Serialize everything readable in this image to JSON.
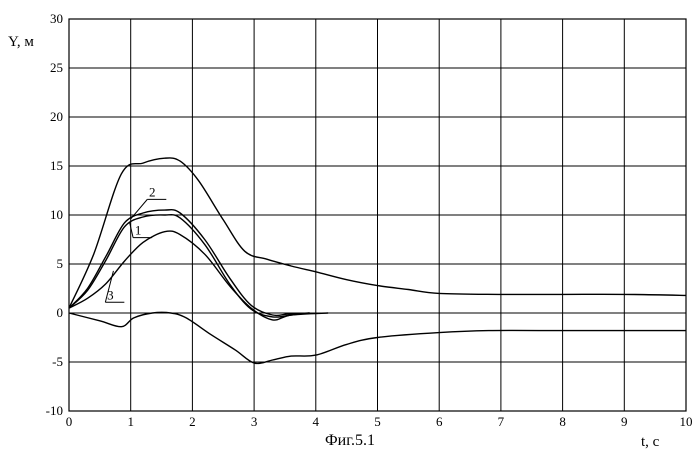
{
  "chart_data": {
    "type": "line",
    "ylabel": "Y, м",
    "xlabel": "t, с",
    "caption": "Фиг.5.1",
    "xlim": [
      0,
      10
    ],
    "ylim": [
      -10,
      30
    ],
    "x_ticks": [
      "0",
      "1",
      "2",
      "3",
      "4",
      "5",
      "6",
      "7",
      "8",
      "9",
      "10"
    ],
    "y_ticks": [
      "-10",
      "-5",
      "0",
      "5",
      "10",
      "15",
      "20",
      "25",
      "30"
    ],
    "grid": true,
    "series": [
      {
        "points": [
          [
            0,
            0.5
          ],
          [
            0.4,
            6
          ],
          [
            0.85,
            14.2
          ],
          [
            1.2,
            15.3
          ],
          [
            1.55,
            15.8
          ],
          [
            1.8,
            15.5
          ],
          [
            2.1,
            13.5
          ],
          [
            2.5,
            9.5
          ],
          [
            2.85,
            6.3
          ],
          [
            3.2,
            5.5
          ],
          [
            3.6,
            4.8
          ],
          [
            4.0,
            4.2
          ],
          [
            4.5,
            3.4
          ],
          [
            5.0,
            2.8
          ],
          [
            5.5,
            2.4
          ],
          [
            6.0,
            2.0
          ],
          [
            7,
            1.9
          ],
          [
            8,
            1.9
          ],
          [
            9,
            1.9
          ],
          [
            10,
            1.8
          ]
        ]
      },
      {
        "points": [
          [
            0,
            0.5
          ],
          [
            0.3,
            2.5
          ],
          [
            0.6,
            5.8
          ],
          [
            0.9,
            9.2
          ],
          [
            1.2,
            10.2
          ],
          [
            1.55,
            10.5
          ],
          [
            1.8,
            10.2
          ],
          [
            2.2,
            7.5
          ],
          [
            2.6,
            3.6
          ],
          [
            2.95,
            0.8
          ],
          [
            3.3,
            -0.2
          ],
          [
            3.55,
            -0.1
          ],
          [
            3.9,
            0
          ]
        ]
      },
      {
        "points": [
          [
            0,
            0.5
          ],
          [
            0.3,
            2.3
          ],
          [
            0.6,
            5.4
          ],
          [
            0.9,
            8.8
          ],
          [
            1.2,
            9.8
          ],
          [
            1.55,
            10.0
          ],
          [
            1.8,
            9.7
          ],
          [
            2.2,
            7.0
          ],
          [
            2.6,
            3.0
          ],
          [
            2.95,
            0.4
          ],
          [
            3.3,
            -0.4
          ],
          [
            3.6,
            -0.2
          ],
          [
            3.9,
            0
          ]
        ]
      },
      {
        "points": [
          [
            0,
            0.5
          ],
          [
            0.3,
            1.5
          ],
          [
            0.6,
            3.0
          ],
          [
            0.9,
            5.3
          ],
          [
            1.2,
            7.2
          ],
          [
            1.55,
            8.3
          ],
          [
            1.8,
            8.0
          ],
          [
            2.2,
            6.0
          ],
          [
            2.6,
            2.8
          ],
          [
            2.95,
            0.5
          ],
          [
            3.3,
            -0.7
          ],
          [
            3.6,
            -0.2
          ],
          [
            4.2,
            0
          ]
        ]
      },
      {
        "points": [
          [
            0,
            0
          ],
          [
            0.5,
            -0.8
          ],
          [
            0.85,
            -1.4
          ],
          [
            1.05,
            -0.5
          ],
          [
            1.35,
            0
          ],
          [
            1.65,
            0
          ],
          [
            1.9,
            -0.5
          ],
          [
            2.3,
            -2.2
          ],
          [
            2.7,
            -3.8
          ],
          [
            3.0,
            -5.1
          ],
          [
            3.3,
            -4.8
          ],
          [
            3.6,
            -4.4
          ],
          [
            4.0,
            -4.3
          ],
          [
            4.5,
            -3.2
          ],
          [
            5.0,
            -2.5
          ],
          [
            6.0,
            -2.0
          ],
          [
            6.8,
            -1.8
          ],
          [
            8,
            -1.8
          ],
          [
            9,
            -1.8
          ],
          [
            10,
            -1.8
          ]
        ]
      }
    ],
    "annotations": [
      {
        "text": "2",
        "x": 1.35,
        "y": 11.9
      },
      {
        "text": "1",
        "x": 1.12,
        "y": 8.0
      },
      {
        "text": "3",
        "x": 0.67,
        "y": 1.4
      }
    ]
  }
}
